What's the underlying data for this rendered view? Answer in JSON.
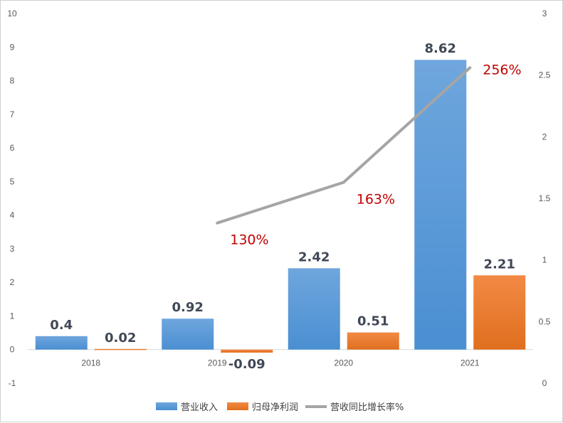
{
  "chart_data": {
    "type": "bar",
    "categories": [
      "2018",
      "2019",
      "2020",
      "2021"
    ],
    "series": [
      {
        "name": "营业收入",
        "type": "bar",
        "axis": "left",
        "values": [
          0.4,
          0.92,
          2.42,
          8.62
        ],
        "labels": [
          "0.4",
          "0.92",
          "2.42",
          "8.62"
        ],
        "color": "#5b9bd5"
      },
      {
        "name": "归母净利润",
        "type": "bar",
        "axis": "left",
        "values": [
          0.02,
          -0.09,
          0.51,
          2.21
        ],
        "labels": [
          "0.02",
          "-0.09",
          "0.51",
          "2.21"
        ],
        "color": "#ed7d31"
      },
      {
        "name": "营收同比增长率%",
        "type": "line",
        "axis": "right",
        "values": [
          null,
          1.3,
          1.63,
          2.56
        ],
        "labels": [
          "",
          "130%",
          "163%",
          "256%"
        ],
        "color": "#a5a5a5"
      }
    ],
    "y_left": {
      "min": -1,
      "max": 10,
      "step": 1,
      "ticks": [
        "-1",
        "0",
        "1",
        "2",
        "3",
        "4",
        "5",
        "6",
        "7",
        "8",
        "9",
        "10"
      ]
    },
    "y_right": {
      "min": 0,
      "max": 3,
      "step": 0.5,
      "ticks": [
        "0",
        "0.5",
        "1",
        "1.5",
        "2",
        "2.5",
        "3"
      ]
    },
    "grid": false,
    "legend": "bottom"
  }
}
